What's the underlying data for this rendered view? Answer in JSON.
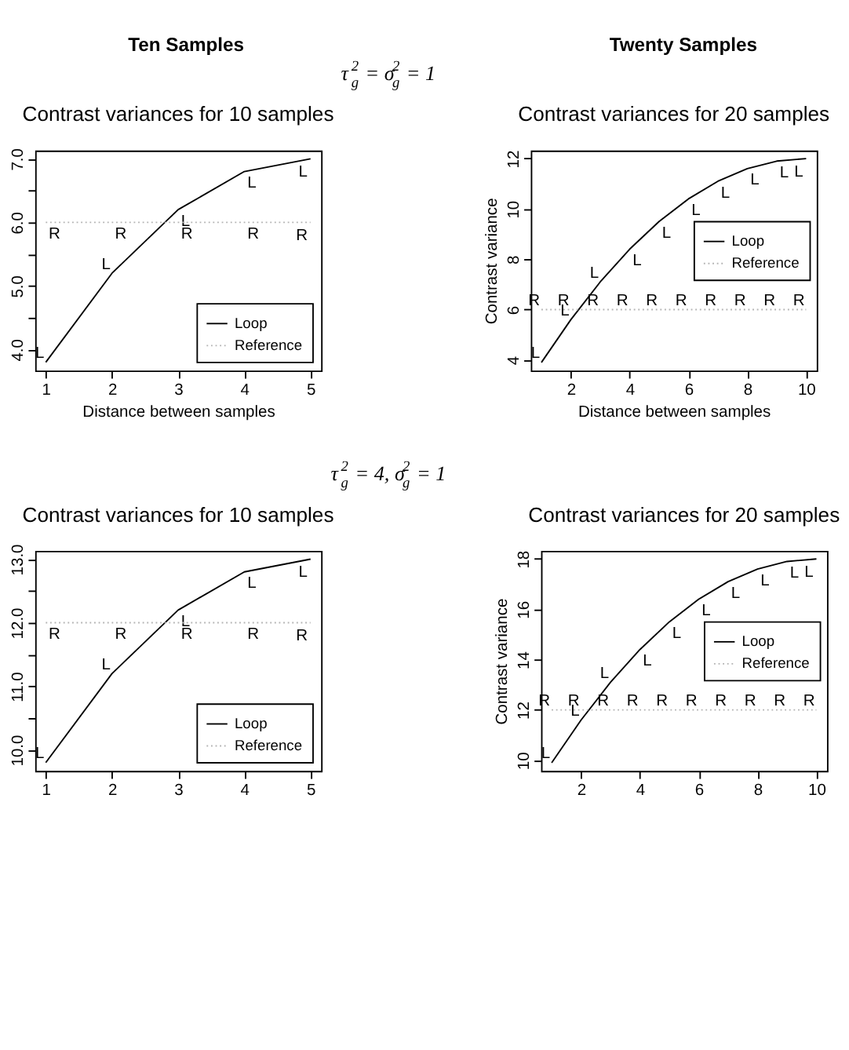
{
  "chart_data": [
    {
      "type": "line",
      "title": "Contrast variances for 10 samples",
      "xlabel": "Distance between samples",
      "annotations": [
        "Ten Samples",
        "τ$_{g}$$^{2}$ = σ$_{g}$$^{2}$ = 1"
      ],
      "x": [
        1,
        2,
        3,
        4,
        5
      ],
      "xlim": [
        0.84,
        5.16
      ],
      "xticks": [
        1,
        2,
        3,
        4,
        5
      ],
      "ylim": [
        3.67,
        7.13
      ],
      "yticks": [
        {
          "value": 4,
          "label": "4.0"
        },
        {
          "value": 4.5,
          "label": null
        },
        {
          "value": 5,
          "label": "5.0"
        },
        {
          "value": 5.5,
          "label": null
        },
        {
          "value": 6,
          "label": "6.0"
        },
        {
          "value": 6.5,
          "label": null
        },
        {
          "value": 7,
          "label": "7.0"
        }
      ],
      "grid": false,
      "legend": "bottom right",
      "series": [
        {
          "name": "Loop",
          "color": "#000000",
          "line_style": "solid",
          "values": [
            3.8,
            5.2,
            6.2,
            6.8,
            7.0
          ],
          "value_labels": [
            "L",
            "L",
            "L",
            "L",
            "L"
          ]
        },
        {
          "name": "Reference",
          "color": "#b4b4b4",
          "line_style": "dotted",
          "values": [
            6,
            6,
            6,
            6,
            6
          ],
          "value_labels": [
            "R",
            "R",
            "R",
            "R",
            "R"
          ]
        }
      ]
    },
    {
      "type": "line",
      "title": "Contrast variances for 20 samples",
      "xlabel": "Distance between samples",
      "ylabel": "Contrast variance",
      "annotations": [
        "Twenty Samples"
      ],
      "x": [
        1,
        2,
        3,
        4,
        5,
        6,
        7,
        8,
        9,
        10
      ],
      "xlim": [
        0.64,
        10.36
      ],
      "xticks": [
        2,
        4,
        6,
        8,
        10
      ],
      "ylim": [
        3.58,
        12.32
      ],
      "yticks": [
        4,
        6,
        8,
        10,
        12
      ],
      "grid": false,
      "legend": "right",
      "series": [
        {
          "name": "Loop",
          "color": "#000000",
          "line_style": "solid",
          "values": [
            3.9,
            5.6,
            7.1,
            8.4,
            9.5,
            10.4,
            11.1,
            11.6,
            11.9,
            12.0
          ],
          "value_labels": [
            "L",
            "L",
            "L",
            "L",
            "L",
            "L",
            "L",
            "L",
            "L",
            "L"
          ]
        },
        {
          "name": "Reference",
          "color": "#b4b4b4",
          "line_style": "dotted",
          "values": [
            6,
            6,
            6,
            6,
            6,
            6,
            6,
            6,
            6,
            6
          ],
          "value_labels": [
            "R",
            "R",
            "R",
            "R",
            "R",
            "R",
            "R",
            "R",
            "R",
            "R"
          ]
        }
      ]
    },
    {
      "type": "line",
      "title": "Contrast variances for 10 samples",
      "annotations": [
        "τ$_{g}$$^{2}$ = 4, σ$_{g}$$^{2}$ = 1"
      ],
      "x": [
        1,
        2,
        3,
        4,
        5
      ],
      "xlim": [
        0.84,
        5.16
      ],
      "xticks": [
        1,
        2,
        3,
        4,
        5
      ],
      "ylim": [
        9.67,
        13.13
      ],
      "yticks": [
        {
          "value": 10,
          "label": "10.0"
        },
        {
          "value": 10.5,
          "label": null
        },
        {
          "value": 11,
          "label": "11.0"
        },
        {
          "value": 11.5,
          "label": null
        },
        {
          "value": 12,
          "label": "12.0"
        },
        {
          "value": 12.5,
          "label": null
        },
        {
          "value": 13,
          "label": "13.0"
        }
      ],
      "grid": false,
      "legend": "bottom right",
      "series": [
        {
          "name": "Loop",
          "color": "#000000",
          "line_style": "solid",
          "values": [
            9.8,
            11.2,
            12.2,
            12.8,
            13.0
          ],
          "value_labels": [
            "L",
            "L",
            "L",
            "L",
            "L"
          ]
        },
        {
          "name": "Reference",
          "color": "#b4b4b4",
          "line_style": "dotted",
          "values": [
            12,
            12,
            12,
            12,
            12
          ],
          "value_labels": [
            "R",
            "R",
            "R",
            "R",
            "R"
          ]
        }
      ]
    },
    {
      "type": "line",
      "title": "Contrast variances for 20 samples",
      "ylabel": "Contrast variance",
      "x": [
        1,
        2,
        3,
        4,
        5,
        6,
        7,
        8,
        9,
        10
      ],
      "xlim": [
        0.64,
        10.36
      ],
      "xticks": [
        2,
        4,
        6,
        8,
        10
      ],
      "ylim": [
        9.58,
        18.32
      ],
      "yticks": [
        10,
        12,
        14,
        16,
        18
      ],
      "grid": false,
      "legend": "right",
      "series": [
        {
          "name": "Loop",
          "color": "#000000",
          "line_style": "solid",
          "values": [
            9.9,
            11.6,
            13.1,
            14.4,
            15.5,
            16.4,
            17.1,
            17.6,
            17.9,
            18.0
          ],
          "value_labels": [
            "L",
            "L",
            "L",
            "L",
            "L",
            "L",
            "L",
            "L",
            "L",
            "L"
          ]
        },
        {
          "name": "Reference",
          "color": "#b4b4b4",
          "line_style": "dotted",
          "values": [
            12,
            12,
            12,
            12,
            12,
            12,
            12,
            12,
            12,
            12
          ],
          "value_labels": [
            "R",
            "R",
            "R",
            "R",
            "R",
            "R",
            "R",
            "R",
            "R",
            "R"
          ]
        }
      ]
    }
  ]
}
